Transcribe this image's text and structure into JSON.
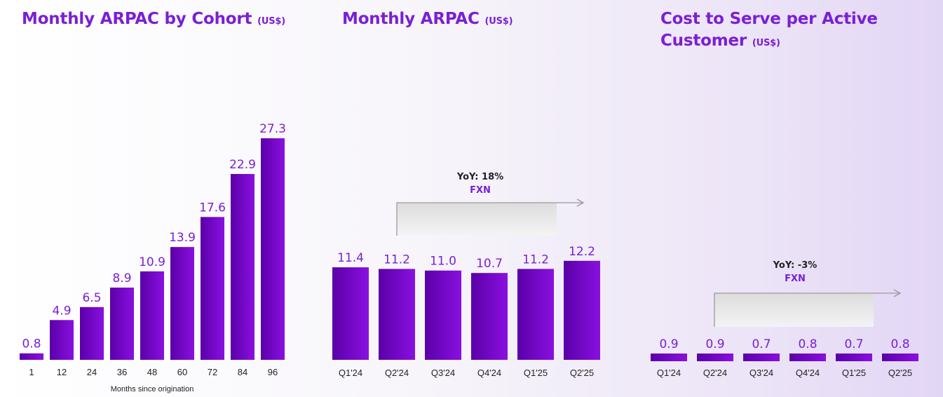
{
  "colors": {
    "accent": "#7a1fd6",
    "bar_dark": "#5a00a8",
    "bar_light": "#8a10e0"
  },
  "chart_data": [
    {
      "type": "bar",
      "title": "Monthly ARPAC by Cohort",
      "unit": "(US$)",
      "xlabel": "Months since origination",
      "ylabel": "",
      "categories": [
        "1",
        "12",
        "24",
        "36",
        "48",
        "60",
        "72",
        "84",
        "96"
      ],
      "values": [
        0.8,
        4.9,
        6.5,
        8.9,
        10.9,
        13.9,
        17.6,
        22.9,
        27.3
      ],
      "labels": [
        "0.8",
        "4.9",
        "6.5",
        "8.9",
        "10.9",
        "13.9",
        "17.6",
        "22.9",
        "27.3"
      ],
      "ylim": [
        0,
        28
      ],
      "grid": false
    },
    {
      "type": "bar",
      "title": "Monthly ARPAC",
      "unit": "(US$)",
      "xlabel": "",
      "ylabel": "",
      "categories": [
        "Q1'24",
        "Q2'24",
        "Q3'24",
        "Q4'24",
        "Q1'25",
        "Q2'25"
      ],
      "values": [
        11.4,
        11.2,
        11.0,
        10.7,
        11.2,
        12.2
      ],
      "labels": [
        "11.4",
        "11.2",
        "11.0",
        "10.7",
        "11.2",
        "12.2"
      ],
      "ylim": [
        0,
        28
      ],
      "grid": false,
      "annotation": {
        "line1": "YoY: 18%",
        "line2": "FXN"
      }
    },
    {
      "type": "bar",
      "title": "Cost to Serve per Active Customer",
      "unit": "(US$)",
      "xlabel": "",
      "ylabel": "",
      "categories": [
        "Q1'24",
        "Q2'24",
        "Q3'24",
        "Q4'24",
        "Q1'25",
        "Q2'25"
      ],
      "values": [
        0.9,
        0.9,
        0.7,
        0.8,
        0.7,
        0.8
      ],
      "labels": [
        "0.9",
        "0.9",
        "0.7",
        "0.8",
        "0.7",
        "0.8"
      ],
      "ylim": [
        0,
        28
      ],
      "grid": false,
      "annotation": {
        "line1": "YoY: -3%",
        "line2": "FXN"
      }
    }
  ]
}
